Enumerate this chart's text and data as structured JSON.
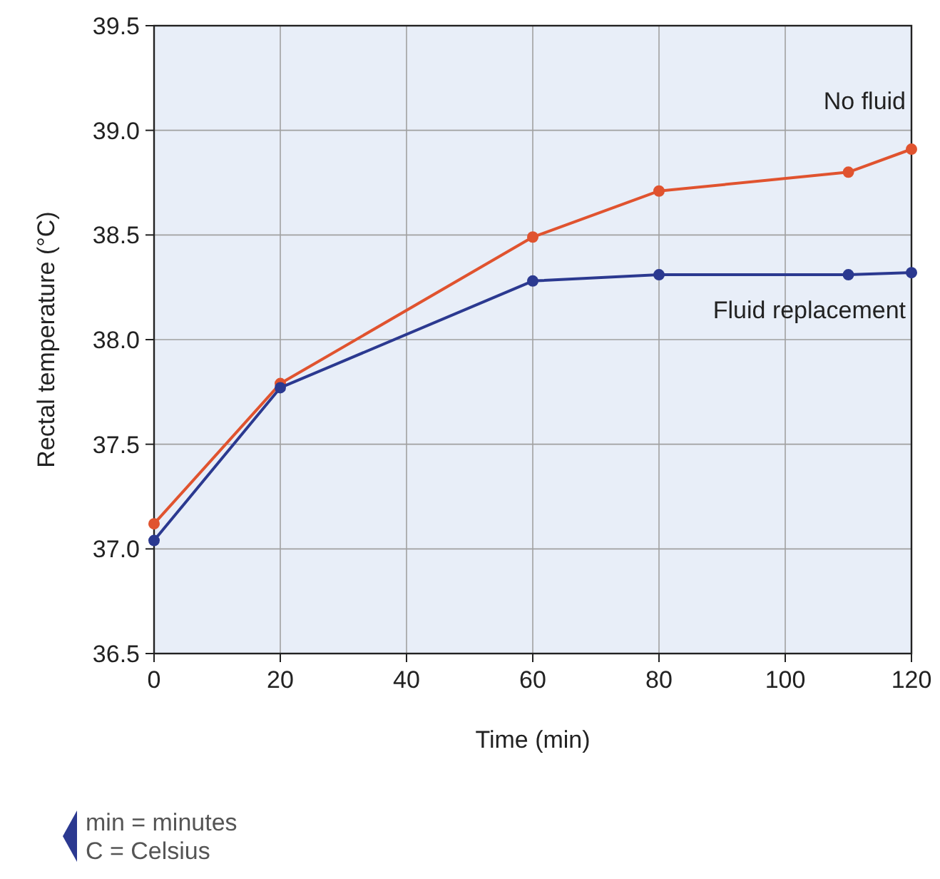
{
  "chart_data": {
    "type": "line",
    "xlabel": "Time (min)",
    "ylabel": "Rectal temperature (°C)",
    "x": [
      0,
      20,
      60,
      80,
      110,
      120
    ],
    "series": [
      {
        "name": "No fluid",
        "color": "#e0532f",
        "values": [
          37.12,
          37.79,
          38.49,
          38.71,
          38.8,
          38.91
        ]
      },
      {
        "name": "Fluid replacement",
        "color": "#2b3990",
        "values": [
          37.04,
          37.77,
          38.28,
          38.31,
          38.31,
          38.32
        ]
      }
    ],
    "xlim": [
      0,
      120
    ],
    "xticks": [
      0,
      20,
      40,
      60,
      80,
      100,
      120
    ],
    "ylim": [
      36.5,
      39.5
    ],
    "yticks": [
      {
        "value": 36.5,
        "label": "36.5"
      },
      {
        "value": 37,
        "label": "37.0"
      },
      {
        "value": 37.5,
        "label": "37.5"
      },
      {
        "value": 38,
        "label": "38.0"
      },
      {
        "value": 38.5,
        "label": "38.5"
      },
      {
        "value": 39,
        "label": "39.0"
      },
      {
        "value": 39.5,
        "label": "39.5"
      }
    ],
    "grid": true,
    "marker": "circle",
    "line_style": "solid",
    "annotations": [
      "min = minutes",
      "C = Celsius"
    ]
  }
}
